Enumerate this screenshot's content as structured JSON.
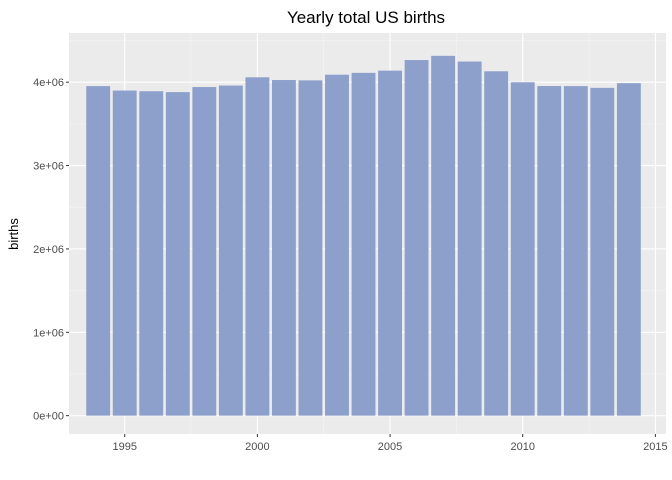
{
  "chart_data": {
    "type": "bar",
    "title": "Yearly total US births",
    "xlabel": "",
    "ylabel": "births",
    "x": [
      1994,
      1995,
      1996,
      1997,
      1998,
      1999,
      2000,
      2001,
      2002,
      2003,
      2004,
      2005,
      2006,
      2007,
      2008,
      2009,
      2010,
      2011,
      2012,
      2013,
      2014
    ],
    "values": [
      3952767,
      3899589,
      3891494,
      3880894,
      3941553,
      3959417,
      4058814,
      4025933,
      4021726,
      4089950,
      4112052,
      4138349,
      4265555,
      4316233,
      4247694,
      4130665,
      3999386,
      3953590,
      3952841,
      3932181,
      3988076
    ],
    "xlim": [
      1992.9,
      2015.4
    ],
    "ylim": [
      -220000,
      4590000
    ],
    "x_ticks": [
      1995,
      2000,
      2005,
      2010,
      2015
    ],
    "x_tick_labels": [
      "1995",
      "2000",
      "2005",
      "2010",
      "2015"
    ],
    "y_ticks": [
      0,
      1000000,
      2000000,
      3000000,
      4000000
    ],
    "y_tick_labels": [
      "0e+00",
      "1e+06",
      "2e+06",
      "3e+06",
      "4e+06"
    ],
    "grid": true,
    "legend": "none",
    "colors": {
      "bar": "#8da0cb",
      "panel_background": "#ebebeb",
      "grid_major": "#ffffff",
      "grid_minor": "#f5f5f5"
    }
  }
}
